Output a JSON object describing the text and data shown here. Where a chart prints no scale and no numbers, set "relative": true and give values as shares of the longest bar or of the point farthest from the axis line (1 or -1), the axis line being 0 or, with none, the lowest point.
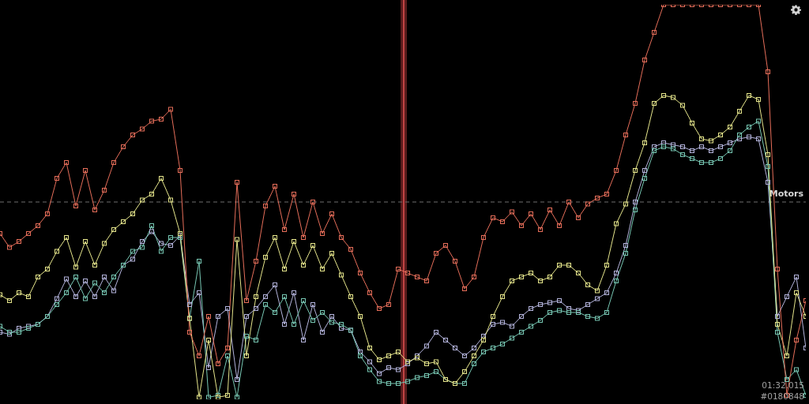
{
  "chart_data": {
    "type": "line",
    "relative": true,
    "marker": "square",
    "line_style": "solid",
    "categories": [
      null,
      null,
      null,
      null,
      null,
      null,
      null,
      null,
      null,
      null,
      null,
      null,
      null,
      null,
      null,
      null,
      null,
      null,
      null,
      null,
      null,
      null,
      null,
      null,
      null,
      null,
      null,
      null,
      null,
      null,
      null,
      null,
      null,
      null,
      null,
      null,
      null,
      null,
      null,
      null,
      null,
      null,
      null,
      null,
      null,
      null,
      null,
      null,
      null,
      null,
      null,
      null,
      null,
      null,
      null,
      null,
      null,
      null,
      null,
      null,
      null,
      null,
      null,
      null,
      null,
      null,
      null,
      null,
      null,
      null,
      null,
      null,
      null,
      null,
      null,
      null,
      null,
      null,
      null,
      null,
      null,
      null,
      null,
      null,
      null,
      null
    ],
    "series": [
      {
        "color": "#b4b4dc",
        "values": [
          -0.66,
          -0.67,
          -0.64,
          -0.63,
          -0.62,
          -0.58,
          -0.49,
          -0.39,
          -0.48,
          -0.4,
          -0.48,
          -0.38,
          -0.45,
          -0.32,
          -0.29,
          -0.2,
          -0.15,
          -0.21,
          -0.22,
          -0.17,
          -0.52,
          -0.46,
          -0.84,
          -0.58,
          -0.54,
          -0.9,
          -0.58,
          -0.54,
          -0.48,
          -0.42,
          -0.62,
          -0.46,
          -0.7,
          -0.52,
          -0.66,
          -0.58,
          -0.64,
          -0.65,
          -0.76,
          -0.81,
          -0.87,
          -0.84,
          -0.85,
          -0.82,
          -0.78,
          -0.73,
          -0.66,
          -0.7,
          -0.74,
          -0.78,
          -0.74,
          -0.68,
          -0.62,
          -0.61,
          -0.63,
          -0.58,
          -0.54,
          -0.52,
          -0.51,
          -0.5,
          -0.54,
          -0.55,
          -0.52,
          -0.49,
          -0.46,
          -0.36,
          -0.22,
          0,
          0.16,
          0.28,
          0.3,
          0.29,
          0.28,
          0.26,
          0.28,
          0.26,
          0.28,
          0.3,
          0.32,
          0.33,
          0.32,
          0.1,
          -0.58,
          -0.48,
          -0.38,
          -0.74
        ]
      },
      {
        "color": "#78c8b4",
        "values": [
          -0.63,
          -0.66,
          -0.66,
          -0.64,
          -0.62,
          -0.58,
          -0.52,
          -0.46,
          -0.38,
          -0.49,
          -0.41,
          -0.46,
          -0.38,
          -0.32,
          -0.25,
          -0.23,
          -0.12,
          -0.25,
          -0.18,
          -0.18,
          -0.59,
          -0.3,
          -0.99,
          -0.98,
          -0.78,
          -0.99,
          -0.68,
          -0.7,
          -0.52,
          -0.56,
          -0.48,
          -0.62,
          -0.5,
          -0.6,
          -0.56,
          -0.61,
          -0.62,
          -0.65,
          -0.78,
          -0.85,
          -0.91,
          -0.92,
          -0.92,
          -0.91,
          -0.89,
          -0.88,
          -0.86,
          -0.9,
          -0.92,
          -0.92,
          -0.82,
          -0.76,
          -0.74,
          -0.72,
          -0.69,
          -0.66,
          -0.63,
          -0.6,
          -0.56,
          -0.55,
          -0.56,
          -0.56,
          -0.58,
          -0.59,
          -0.56,
          -0.4,
          -0.26,
          -0.04,
          0.12,
          0.26,
          0.28,
          0.27,
          0.24,
          0.22,
          0.2,
          0.2,
          0.22,
          0.26,
          0.34,
          0.38,
          0.41,
          0.18,
          -0.66,
          -0.9,
          -0.85,
          -0.98
        ]
      },
      {
        "color": "#e6e68c",
        "values": [
          -0.47,
          -0.5,
          -0.46,
          -0.48,
          -0.38,
          -0.34,
          -0.25,
          -0.18,
          -0.33,
          -0.2,
          -0.32,
          -0.21,
          -0.14,
          -0.1,
          -0.06,
          0.01,
          0.04,
          0.12,
          0.01,
          -0.16,
          -0.59,
          -0.99,
          -0.7,
          -0.99,
          -0.98,
          -0.19,
          -0.78,
          -0.48,
          -0.28,
          -0.18,
          -0.34,
          -0.2,
          -0.32,
          -0.22,
          -0.34,
          -0.26,
          -0.37,
          -0.48,
          -0.58,
          -0.74,
          -0.8,
          -0.78,
          -0.76,
          -0.81,
          -0.79,
          -0.82,
          -0.81,
          -0.9,
          -0.92,
          -0.86,
          -0.78,
          -0.7,
          -0.58,
          -0.48,
          -0.4,
          -0.38,
          -0.36,
          -0.4,
          -0.38,
          -0.32,
          -0.32,
          -0.36,
          -0.42,
          -0.45,
          -0.32,
          -0.11,
          -0.01,
          0.16,
          0.3,
          0.5,
          0.54,
          0.53,
          0.49,
          0.4,
          0.32,
          0.31,
          0.34,
          0.38,
          0.46,
          0.54,
          0.52,
          0.24,
          -0.62,
          -0.78,
          -0.46,
          -0.58
        ]
      },
      {
        "color": "#e66e5a",
        "values": [
          -0.16,
          -0.23,
          -0.2,
          -0.16,
          -0.12,
          -0.06,
          0.12,
          0.2,
          -0.02,
          0.16,
          -0.04,
          0.06,
          0.2,
          0.28,
          0.34,
          0.37,
          0.41,
          0.42,
          0.47,
          0.16,
          -0.66,
          -0.78,
          -0.58,
          -0.82,
          -0.74,
          0.1,
          -0.5,
          -0.3,
          -0.02,
          0.08,
          -0.14,
          0.04,
          -0.18,
          0,
          -0.16,
          -0.06,
          -0.18,
          -0.24,
          -0.36,
          -0.46,
          -0.54,
          -0.52,
          -0.34,
          -0.36,
          -0.38,
          -0.4,
          -0.26,
          -0.22,
          -0.3,
          -0.44,
          -0.38,
          -0.18,
          -0.08,
          -0.1,
          -0.05,
          -0.12,
          -0.06,
          -0.14,
          -0.04,
          -0.12,
          0,
          -0.08,
          -0.01,
          0.02,
          0.04,
          0.16,
          0.34,
          0.5,
          0.72,
          0.86,
          1,
          1,
          1,
          1,
          1,
          1,
          1,
          1,
          1,
          1,
          1,
          0.66,
          -0.34,
          -0.98,
          -0.7,
          -0.5
        ]
      }
    ],
    "ref_lines": [
      {
        "axis": "y",
        "value": 0,
        "label": "Motors",
        "color": "#6e6e6e",
        "line_style": "dashed"
      }
    ],
    "annotations": [
      "01:32.015",
      "#0180848"
    ]
  }
}
